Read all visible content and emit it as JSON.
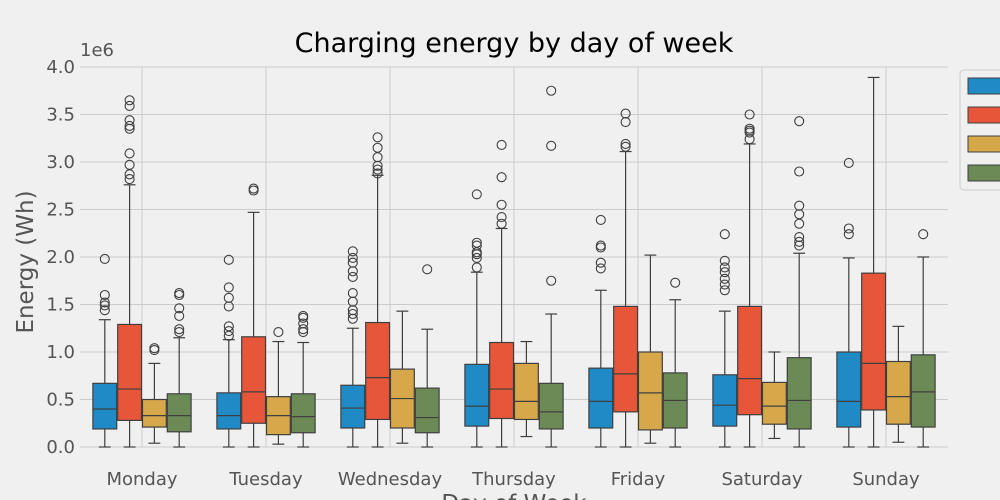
{
  "chart_data": {
    "type": "box",
    "title": "Charging energy by day of week",
    "xlabel": "Day of Week",
    "ylabel": "Energy (Wh)",
    "y_offset_label": "1e6",
    "ylim": [
      0,
      4000000
    ],
    "yticks": [
      0,
      500000,
      1000000,
      1500000,
      2000000,
      2500000,
      3000000,
      3500000,
      4000000
    ],
    "ytick_labels": [
      "0.0",
      "0.5",
      "1.0",
      "1.5",
      "2.0",
      "2.5",
      "3.0",
      "3.5",
      "4.0"
    ],
    "grid": true,
    "legend_position": "right",
    "categories": [
      "Monday",
      "Tuesday",
      "Wednesday",
      "Thursday",
      "Friday",
      "Saturday",
      "Sunday"
    ],
    "series": [
      {
        "color": "#1f8ac6",
        "boxes": [
          {
            "whisker_low": 0,
            "q1": 190000,
            "median": 400000,
            "q3": 670000,
            "whisker_high": 1340000,
            "fliers": [
              1440000,
              1490000,
              1520000,
              1600000,
              1980000
            ]
          },
          {
            "whisker_low": 0,
            "q1": 190000,
            "median": 330000,
            "q3": 570000,
            "whisker_high": 1130000,
            "fliers": [
              1170000,
              1220000,
              1270000,
              1480000,
              1570000,
              1680000,
              1970000
            ]
          },
          {
            "whisker_low": 0,
            "q1": 200000,
            "median": 410000,
            "q3": 650000,
            "whisker_high": 1250000,
            "fliers": [
              1350000,
              1400000,
              1440000,
              1530000,
              1620000,
              1790000,
              1850000,
              1940000,
              1990000,
              2060000
            ]
          },
          {
            "whisker_low": 0,
            "q1": 220000,
            "median": 430000,
            "q3": 870000,
            "whisker_high": 1840000,
            "fliers": [
              1890000,
              1990000,
              2030000,
              2050000,
              2120000,
              2150000,
              2660000
            ]
          },
          {
            "whisker_low": 0,
            "q1": 200000,
            "median": 480000,
            "q3": 830000,
            "whisker_high": 1650000,
            "fliers": [
              1880000,
              1940000,
              2100000,
              2120000,
              2390000
            ]
          },
          {
            "whisker_low": 0,
            "q1": 220000,
            "median": 440000,
            "q3": 760000,
            "whisker_high": 1430000,
            "fliers": [
              1650000,
              1710000,
              1770000,
              1840000,
              1890000,
              1960000,
              2240000
            ]
          },
          {
            "whisker_low": 0,
            "q1": 210000,
            "median": 480000,
            "q3": 1000000,
            "whisker_high": 1990000,
            "fliers": [
              2240000,
              2300000,
              2990000
            ]
          }
        ]
      },
      {
        "color": "#e8563a",
        "boxes": [
          {
            "whisker_low": 0,
            "q1": 280000,
            "median": 610000,
            "q3": 1290000,
            "whisker_high": 2760000,
            "fliers": [
              2820000,
              2870000,
              2970000,
              3090000,
              3350000,
              3380000,
              3440000,
              3590000,
              3650000
            ]
          },
          {
            "whisker_low": 0,
            "q1": 250000,
            "median": 580000,
            "q3": 1160000,
            "whisker_high": 2470000,
            "fliers": [
              2700000,
              2720000
            ]
          },
          {
            "whisker_low": 0,
            "q1": 290000,
            "median": 730000,
            "q3": 1310000,
            "whisker_high": 2860000,
            "fliers": [
              2880000,
              2920000,
              2960000,
              3050000,
              3150000,
              3260000
            ]
          },
          {
            "whisker_low": 0,
            "q1": 300000,
            "median": 610000,
            "q3": 1100000,
            "whisker_high": 2300000,
            "fliers": [
              2350000,
              2420000,
              2550000,
              2840000,
              3180000
            ]
          },
          {
            "whisker_low": 0,
            "q1": 370000,
            "median": 770000,
            "q3": 1480000,
            "whisker_high": 3110000,
            "fliers": [
              3160000,
              3190000,
              3420000,
              3510000
            ]
          },
          {
            "whisker_low": 0,
            "q1": 340000,
            "median": 720000,
            "q3": 1480000,
            "whisker_high": 3190000,
            "fliers": [
              3240000,
              3310000,
              3330000,
              3350000,
              3500000
            ]
          },
          {
            "whisker_low": 0,
            "q1": 390000,
            "median": 880000,
            "q3": 1830000,
            "whisker_high": 3890000,
            "fliers": []
          }
        ]
      },
      {
        "color": "#d7a84a",
        "boxes": [
          {
            "whisker_low": 40000,
            "q1": 210000,
            "median": 330000,
            "q3": 500000,
            "whisker_high": 880000,
            "fliers": [
              1020000,
              1040000
            ]
          },
          {
            "whisker_low": 30000,
            "q1": 130000,
            "median": 330000,
            "q3": 530000,
            "whisker_high": 1110000,
            "fliers": [
              1210000
            ]
          },
          {
            "whisker_low": 40000,
            "q1": 200000,
            "median": 510000,
            "q3": 820000,
            "whisker_high": 1430000,
            "fliers": []
          },
          {
            "whisker_low": 110000,
            "q1": 290000,
            "median": 480000,
            "q3": 880000,
            "whisker_high": 1110000,
            "fliers": []
          },
          {
            "whisker_low": 40000,
            "q1": 180000,
            "median": 570000,
            "q3": 1000000,
            "whisker_high": 2020000,
            "fliers": []
          },
          {
            "whisker_low": 90000,
            "q1": 240000,
            "median": 430000,
            "q3": 680000,
            "whisker_high": 1000000,
            "fliers": []
          },
          {
            "whisker_low": 50000,
            "q1": 240000,
            "median": 530000,
            "q3": 900000,
            "whisker_high": 1270000,
            "fliers": []
          }
        ]
      },
      {
        "color": "#6b8a56",
        "boxes": [
          {
            "whisker_low": 0,
            "q1": 160000,
            "median": 330000,
            "q3": 560000,
            "whisker_high": 1150000,
            "fliers": [
              1210000,
              1240000,
              1380000,
              1460000,
              1600000,
              1620000
            ]
          },
          {
            "whisker_low": 0,
            "q1": 150000,
            "median": 320000,
            "q3": 560000,
            "whisker_high": 1100000,
            "fliers": [
              1210000,
              1240000,
              1300000,
              1360000,
              1380000
            ]
          },
          {
            "whisker_low": 0,
            "q1": 150000,
            "median": 310000,
            "q3": 620000,
            "whisker_high": 1240000,
            "fliers": [
              1870000
            ]
          },
          {
            "whisker_low": 0,
            "q1": 190000,
            "median": 370000,
            "q3": 670000,
            "whisker_high": 1400000,
            "fliers": [
              1750000,
              3170000,
              3750000
            ]
          },
          {
            "whisker_low": 0,
            "q1": 200000,
            "median": 490000,
            "q3": 780000,
            "whisker_high": 1550000,
            "fliers": [
              1730000
            ]
          },
          {
            "whisker_low": 0,
            "q1": 190000,
            "median": 490000,
            "q3": 940000,
            "whisker_high": 2040000,
            "fliers": [
              2120000,
              2160000,
              2210000,
              2350000,
              2450000,
              2540000,
              2900000,
              3430000
            ]
          },
          {
            "whisker_low": 0,
            "q1": 210000,
            "median": 580000,
            "q3": 970000,
            "whisker_high": 2000000,
            "fliers": [
              2240000
            ]
          }
        ]
      }
    ]
  }
}
